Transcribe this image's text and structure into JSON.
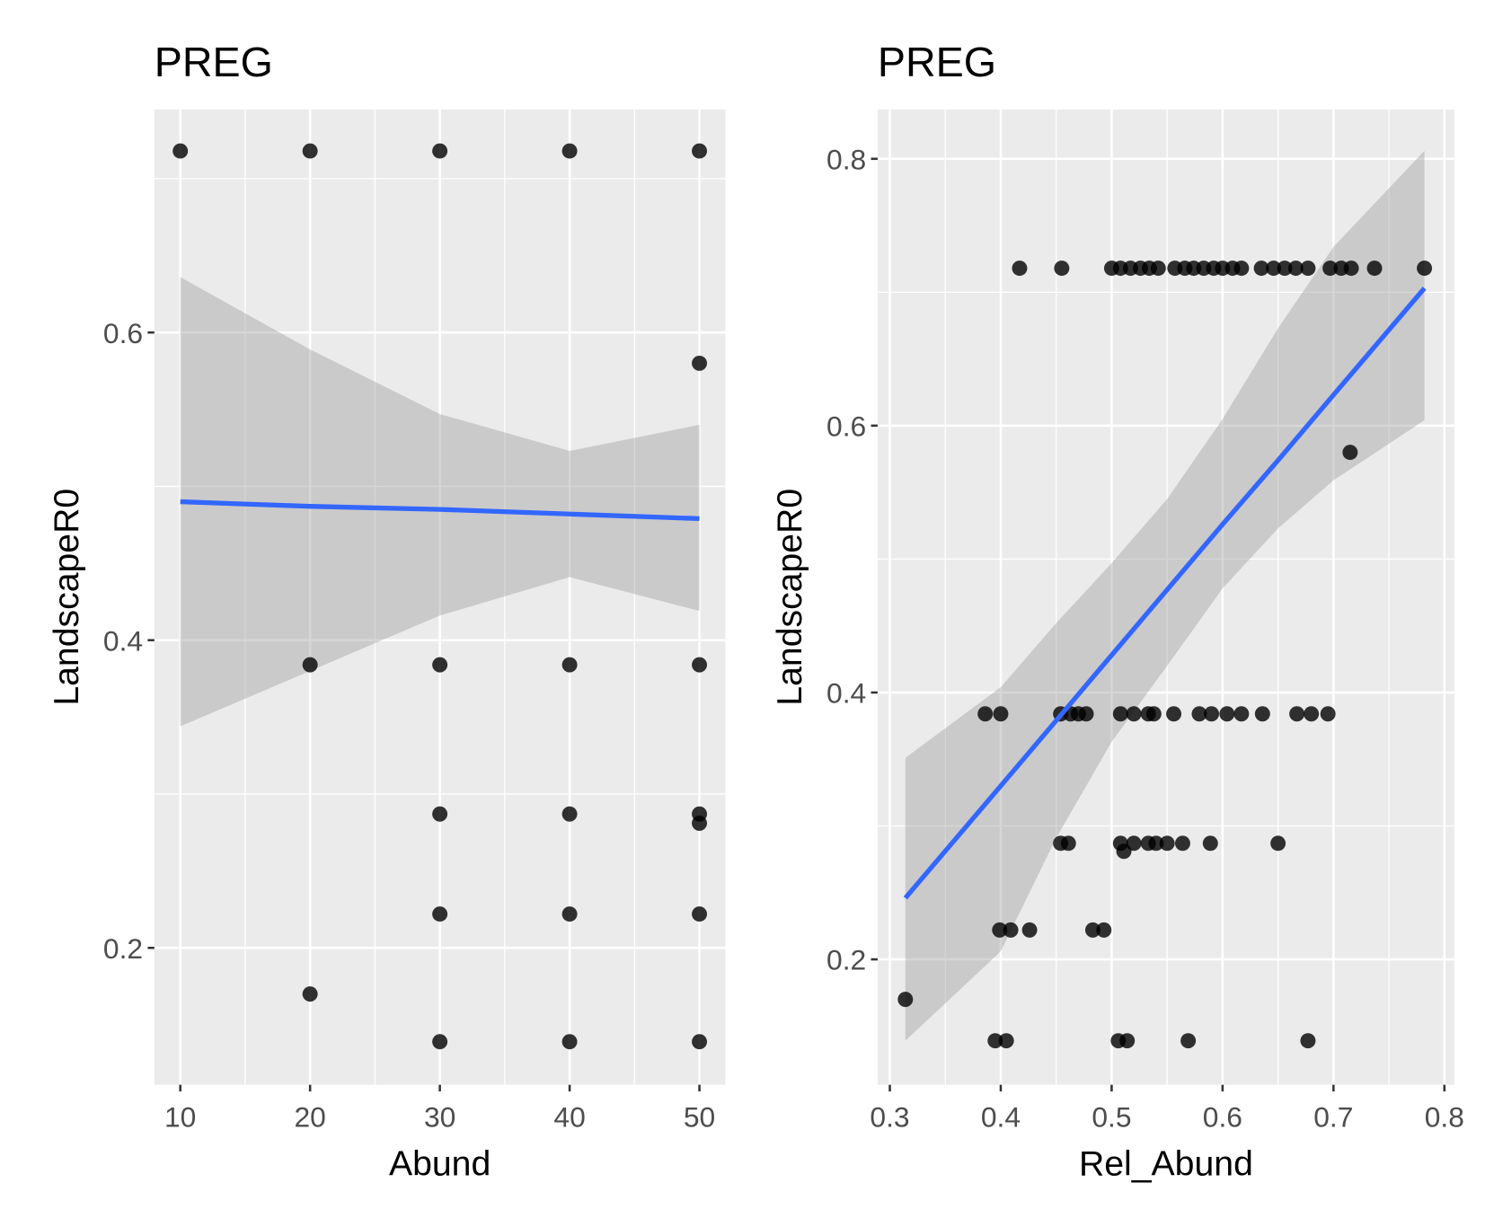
{
  "chart_data": [
    {
      "type": "scatter",
      "title": "PREG",
      "x_label": "Abund",
      "y_label": "LandscapeR0",
      "xlim": [
        8,
        52
      ],
      "ylim": [
        0.111,
        0.745
      ],
      "xticks": [
        10,
        20,
        30,
        40,
        50
      ],
      "yticks": [
        0.2,
        0.4,
        0.6
      ],
      "grid": true,
      "point_color": "#000000",
      "x": [
        10,
        20,
        30,
        40,
        50,
        50,
        20,
        30,
        40,
        50,
        30,
        40,
        50,
        50,
        30,
        40,
        50,
        20,
        30,
        40,
        50
      ],
      "values": [
        0.718,
        0.718,
        0.718,
        0.718,
        0.718,
        0.58,
        0.384,
        0.384,
        0.384,
        0.384,
        0.287,
        0.287,
        0.287,
        0.281,
        0.222,
        0.222,
        0.222,
        0.17,
        0.139,
        0.139,
        0.139
      ],
      "fit": {
        "color": "#3366ff",
        "band_color": "#999999",
        "x": [
          10,
          20,
          30,
          40,
          50
        ],
        "values": [
          0.49,
          0.487,
          0.485,
          0.482,
          0.479
        ],
        "lower": [
          0.344,
          0.38,
          0.416,
          0.441,
          0.419
        ],
        "upper": [
          0.636,
          0.589,
          0.547,
          0.523,
          0.54
        ]
      }
    },
    {
      "type": "scatter",
      "title": "PREG",
      "x_label": "Rel_Abund",
      "y_label": "LandscapeR0",
      "xlim": [
        0.289,
        0.809
      ],
      "ylim": [
        0.106,
        0.837
      ],
      "xticks": [
        0.3,
        0.4,
        0.5,
        0.6,
        0.7,
        0.8
      ],
      "yticks": [
        0.2,
        0.4,
        0.6,
        0.8
      ],
      "grid": true,
      "point_color": "#000000",
      "x": [
        0.417,
        0.455,
        0.5,
        0.508,
        0.517,
        0.526,
        0.534,
        0.542,
        0.557,
        0.566,
        0.574,
        0.583,
        0.592,
        0.6,
        0.609,
        0.617,
        0.635,
        0.646,
        0.656,
        0.666,
        0.677,
        0.697,
        0.707,
        0.716,
        0.737,
        0.782,
        0.715,
        0.386,
        0.4,
        0.454,
        0.463,
        0.47,
        0.477,
        0.508,
        0.52,
        0.533,
        0.538,
        0.556,
        0.579,
        0.59,
        0.604,
        0.617,
        0.636,
        0.667,
        0.68,
        0.695,
        0.454,
        0.461,
        0.508,
        0.52,
        0.533,
        0.54,
        0.55,
        0.564,
        0.589,
        0.65,
        0.511,
        0.399,
        0.409,
        0.426,
        0.483,
        0.493,
        0.314,
        0.395,
        0.405,
        0.506,
        0.514,
        0.569,
        0.677
      ],
      "values": [
        0.718,
        0.718,
        0.718,
        0.718,
        0.718,
        0.718,
        0.718,
        0.718,
        0.718,
        0.718,
        0.718,
        0.718,
        0.718,
        0.718,
        0.718,
        0.718,
        0.718,
        0.718,
        0.718,
        0.718,
        0.718,
        0.718,
        0.718,
        0.718,
        0.718,
        0.718,
        0.58,
        0.384,
        0.384,
        0.384,
        0.384,
        0.384,
        0.384,
        0.384,
        0.384,
        0.384,
        0.384,
        0.384,
        0.384,
        0.384,
        0.384,
        0.384,
        0.384,
        0.384,
        0.384,
        0.384,
        0.287,
        0.287,
        0.287,
        0.287,
        0.287,
        0.287,
        0.287,
        0.287,
        0.287,
        0.287,
        0.281,
        0.222,
        0.222,
        0.222,
        0.222,
        0.222,
        0.17,
        0.139,
        0.139,
        0.139,
        0.139,
        0.139,
        0.139
      ],
      "fit": {
        "color": "#3366ff",
        "band_color": "#999999",
        "x": [
          0.314,
          0.4,
          0.45,
          0.5,
          0.55,
          0.6,
          0.65,
          0.7,
          0.782
        ],
        "values": [
          0.246,
          0.33,
          0.379,
          0.428,
          0.477,
          0.526,
          0.574,
          0.623,
          0.703
        ],
        "lower": [
          0.139,
          0.206,
          0.291,
          0.363,
          0.42,
          0.478,
          0.523,
          0.559,
          0.604
        ],
        "upper": [
          0.351,
          0.404,
          0.452,
          0.497,
          0.545,
          0.605,
          0.673,
          0.734,
          0.806
        ]
      }
    }
  ]
}
